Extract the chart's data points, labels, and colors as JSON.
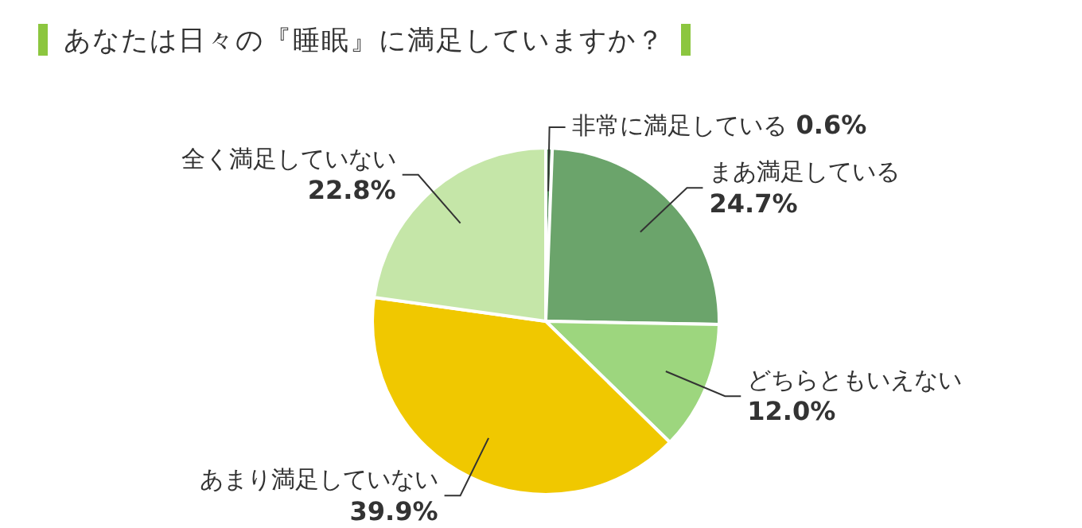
{
  "chart_data": {
    "type": "pie",
    "title": "あなたは日々の『睡眠』に満足していますか？",
    "categories": [
      "非常に満足している",
      "まあ満足している",
      "どちらともいえない",
      "あまり満足していない",
      "全く満足していない"
    ],
    "values": [
      0.6,
      24.7,
      12.0,
      39.9,
      22.8
    ],
    "colors": [
      "#4f8a55",
      "#6ba46b",
      "#9dd67e",
      "#f0c800",
      "#c5e6a8"
    ],
    "value_labels": [
      "0.6%",
      "24.7%",
      "12.0%",
      "39.9%",
      "22.8%"
    ],
    "legend": false
  }
}
